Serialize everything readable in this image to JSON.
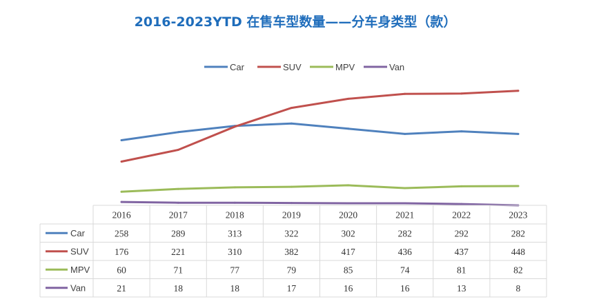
{
  "colors": {
    "title": "#1f6dbb",
    "grid": "#d9d9d9"
  },
  "chart_data": {
    "type": "line",
    "title": "2016-2023YTD 在售车型数量——分车身类型（款）",
    "xlabel": "",
    "ylabel": "",
    "ylim": [
      0,
      500
    ],
    "grid": false,
    "legend": "top-center",
    "data_table": true,
    "categories": [
      "2016",
      "2017",
      "2018",
      "2019",
      "2020",
      "2021",
      "2022",
      "2023"
    ],
    "series": [
      {
        "name": "Car",
        "color": "#4f81bd",
        "values": [
          258,
          289,
          313,
          322,
          302,
          282,
          292,
          282
        ]
      },
      {
        "name": "SUV",
        "color": "#c0504d",
        "values": [
          176,
          221,
          310,
          382,
          417,
          436,
          437,
          448
        ]
      },
      {
        "name": "MPV",
        "color": "#9bbb59",
        "values": [
          60,
          71,
          77,
          79,
          85,
          74,
          81,
          82
        ]
      },
      {
        "name": "Van",
        "color": "#8064a2",
        "values": [
          21,
          18,
          18,
          17,
          16,
          16,
          13,
          8
        ]
      }
    ]
  }
}
